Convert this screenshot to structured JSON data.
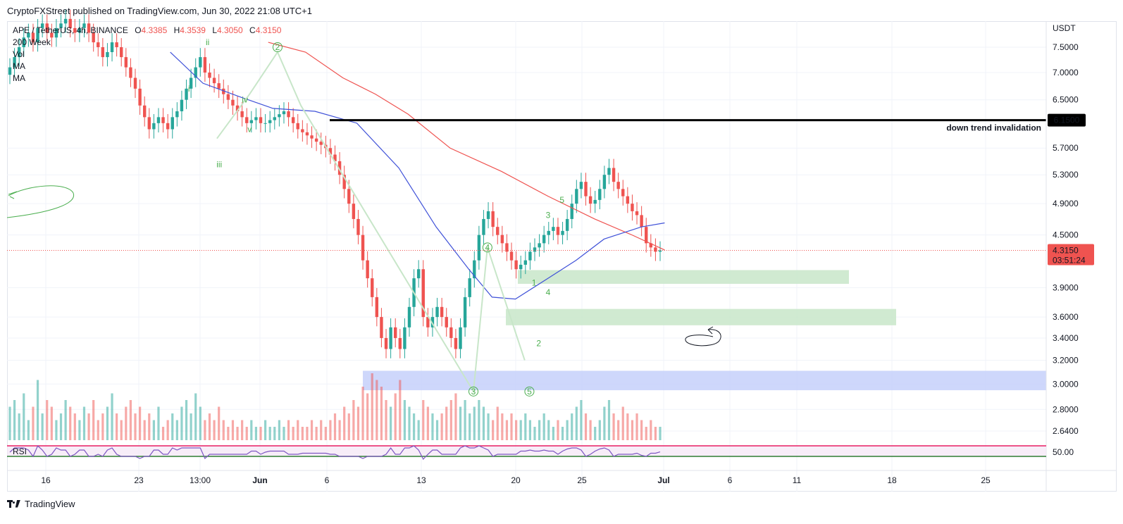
{
  "header": {
    "published": "CryptoFXStreet published on TradingView.com, Jun 30, 2022 21:08 UTC+1"
  },
  "legend": {
    "symbol": "APE / TetherUS, 4h, BINANCE",
    "open_k": "O",
    "open": "4.3385",
    "high_k": "H",
    "high": "4.3539",
    "low_k": "L",
    "low": "4.3050",
    "close_k": "C",
    "close": "4.3150",
    "indicators": [
      "200 Week",
      "Vol",
      "MA",
      "MA"
    ]
  },
  "footer": {
    "brand": "TradingView"
  },
  "chart_data": {
    "type": "candlestick",
    "currency": "USDT",
    "y_ticks": [
      7.5,
      7.0,
      6.5,
      5.7,
      5.3,
      4.9,
      4.5,
      3.9,
      3.6,
      3.4,
      3.2,
      3.0,
      2.8,
      2.64
    ],
    "y_tick_labels": [
      "7.5000",
      "7.0000",
      "6.5000",
      "5.7000",
      "5.3000",
      "4.9000",
      "4.5000",
      "3.9000",
      "3.6000",
      "3.4000",
      "3.2000",
      "3.0000",
      "2.8000",
      "2.6400"
    ],
    "x_tick_labels": [
      "16",
      "23",
      "13:00",
      "Jun",
      "6",
      "13",
      "20",
      "25",
      "Jul",
      "6",
      "11",
      "18",
      "25"
    ],
    "last_price": "4.3150",
    "countdown": "03:51:24",
    "level_line": {
      "value": 6.15,
      "label": "6.1500",
      "note": "down trend invalidation"
    },
    "zones": [
      {
        "low": 3.94,
        "high": 4.09,
        "color": "#c8e6c9"
      },
      {
        "low": 3.52,
        "high": 3.68,
        "color": "#c8e6c9"
      },
      {
        "low": 2.95,
        "high": 3.11,
        "color": "#c5d0fa"
      }
    ],
    "closes": [
      7.1,
      7.3,
      7.5,
      7.7,
      7.8,
      7.6,
      7.9,
      8.0,
      7.8,
      7.7,
      7.9,
      8.0,
      8.1,
      7.9,
      7.8,
      7.9,
      8.0,
      7.8,
      7.6,
      7.5,
      7.3,
      7.4,
      7.6,
      7.5,
      7.3,
      7.1,
      6.9,
      6.7,
      6.4,
      6.2,
      6.0,
      6.1,
      6.2,
      6.1,
      6.0,
      6.2,
      6.3,
      6.5,
      6.7,
      6.9,
      7.1,
      7.3,
      7.0,
      6.9,
      6.8,
      6.7,
      6.6,
      6.5,
      6.4,
      6.3,
      6.2,
      6.1,
      6.15,
      6.2,
      6.1,
      6.1,
      6.15,
      6.2,
      6.25,
      6.3,
      6.2,
      6.1,
      6.0,
      5.95,
      5.9,
      5.85,
      5.8,
      5.75,
      5.7,
      5.6,
      5.5,
      5.3,
      5.1,
      4.9,
      4.7,
      4.5,
      4.2,
      4.0,
      3.8,
      3.6,
      3.4,
      3.3,
      3.5,
      3.4,
      3.3,
      3.5,
      3.7,
      4.0,
      4.1,
      3.6,
      3.5,
      3.6,
      3.7,
      3.6,
      3.5,
      3.4,
      3.3,
      3.5,
      3.8,
      4.0,
      4.2,
      4.5,
      4.7,
      4.8,
      4.6,
      4.5,
      4.4,
      4.3,
      4.2,
      4.1,
      4.15,
      4.2,
      4.3,
      4.35,
      4.4,
      4.5,
      4.55,
      4.6,
      4.5,
      4.55,
      4.7,
      4.9,
      5.1,
      5.2,
      5.0,
      4.9,
      4.95,
      5.1,
      5.3,
      5.4,
      5.2,
      5.1,
      5.0,
      4.9,
      4.8,
      4.75,
      4.6,
      4.4,
      4.35,
      4.3,
      4.315
    ],
    "volumes": [
      0.5,
      0.6,
      0.4,
      0.7,
      0.3,
      0.5,
      0.9,
      0.4,
      0.6,
      0.5,
      0.3,
      0.4,
      0.6,
      0.5,
      0.4,
      0.3,
      0.5,
      0.4,
      0.6,
      0.3,
      0.4,
      0.5,
      0.7,
      0.4,
      0.3,
      0.5,
      0.6,
      0.4,
      0.5,
      0.3,
      0.4,
      0.3,
      0.5,
      0.2,
      0.3,
      0.4,
      0.3,
      0.5,
      0.6,
      0.4,
      0.7,
      0.5,
      0.3,
      0.4,
      0.3,
      0.5,
      0.3,
      0.2,
      0.3,
      0.2,
      0.3,
      0.2,
      0.3,
      0.2,
      0.2,
      0.3,
      0.2,
      0.2,
      0.3,
      0.2,
      0.3,
      0.2,
      0.3,
      0.2,
      0.2,
      0.3,
      0.2,
      0.3,
      0.2,
      0.3,
      0.4,
      0.3,
      0.5,
      0.4,
      0.6,
      0.5,
      0.8,
      0.7,
      1.0,
      0.9,
      0.8,
      0.6,
      0.5,
      0.7,
      0.9,
      0.6,
      0.5,
      0.4,
      0.3,
      0.6,
      0.5,
      0.4,
      0.3,
      0.4,
      0.5,
      0.6,
      0.7,
      0.5,
      0.6,
      0.4,
      0.5,
      0.6,
      0.5,
      0.4,
      0.3,
      0.5,
      0.4,
      0.3,
      0.4,
      0.3,
      0.3,
      0.4,
      0.3,
      0.2,
      0.3,
      0.4,
      0.3,
      0.2,
      0.3,
      0.2,
      0.3,
      0.4,
      0.5,
      0.6,
      0.4,
      0.3,
      0.2,
      0.3,
      0.5,
      0.6,
      0.4,
      0.3,
      0.5,
      0.4,
      0.3,
      0.4,
      0.3,
      0.2,
      0.3,
      0.2,
      0.2
    ],
    "ma_red": [
      [
        5.6,
        7.6
      ],
      [
        6.4,
        7.4
      ],
      [
        7.2,
        6.9
      ],
      [
        7.9,
        6.6
      ],
      [
        8.6,
        6.25
      ],
      [
        9.5,
        5.7
      ],
      [
        10.6,
        5.35
      ],
      [
        11.6,
        5.0
      ],
      [
        12.6,
        4.7
      ],
      [
        13.4,
        4.5
      ],
      [
        14.1,
        4.32
      ]
    ],
    "ma_blue": [
      [
        3.5,
        7.4
      ],
      [
        4.2,
        6.8
      ],
      [
        5.0,
        6.55
      ],
      [
        5.7,
        6.35
      ],
      [
        6.6,
        6.3
      ],
      [
        7.5,
        6.1
      ],
      [
        8.4,
        5.4
      ],
      [
        9.2,
        4.6
      ],
      [
        9.9,
        4.1
      ],
      [
        10.4,
        3.8
      ],
      [
        10.9,
        3.78
      ],
      [
        11.6,
        4.0
      ],
      [
        12.2,
        4.2
      ],
      [
        12.8,
        4.45
      ],
      [
        13.6,
        4.6
      ],
      [
        14.1,
        4.65
      ]
    ],
    "elliott_labels": [
      {
        "text": "i",
        "x": 3.9,
        "y": 6.7
      },
      {
        "text": "ii",
        "x": 4.3,
        "y": 7.6
      },
      {
        "text": "iii",
        "x": 4.55,
        "y": 5.45
      },
      {
        "text": "iv",
        "x": 5.1,
        "y": 6.5
      },
      {
        "text": "v",
        "x": 5.2,
        "y": 6.0
      },
      {
        "text": "2",
        "x": 5.8,
        "y": 7.5,
        "circled": true
      },
      {
        "text": "4",
        "x": 10.3,
        "y": 4.35,
        "circled": true
      },
      {
        "text": "3",
        "x": 10.0,
        "y": 2.94,
        "circled": true
      },
      {
        "text": "5",
        "x": 11.2,
        "y": 2.94,
        "circled": true
      },
      {
        "text": "1",
        "x": 11.3,
        "y": 3.95
      },
      {
        "text": "2",
        "x": 11.4,
        "y": 3.35
      },
      {
        "text": "3",
        "x": 11.6,
        "y": 4.75
      },
      {
        "text": "4",
        "x": 11.6,
        "y": 3.85
      },
      {
        "text": "5",
        "x": 11.9,
        "y": 4.95
      }
    ],
    "rsi": {
      "label": "RSI",
      "level": "50.00"
    }
  },
  "colors": {
    "up": "#26a69a",
    "down": "#ef5350",
    "ma_red": "#ef5350",
    "ma_blue": "#3f51d8",
    "grid": "#f0f3fa"
  }
}
